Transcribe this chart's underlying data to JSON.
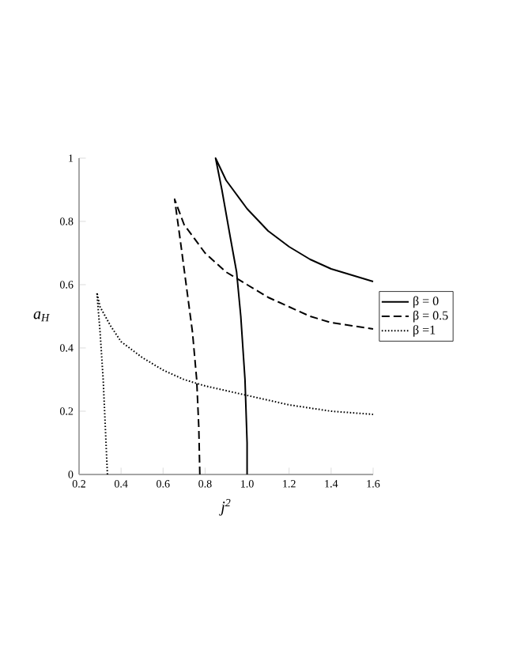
{
  "chart_data": {
    "type": "line",
    "xlabel": "j$^{2}$",
    "ylabel": "a$_{H}$",
    "xlim": [
      0.2,
      1.6
    ],
    "ylim": [
      0,
      1
    ],
    "xticks": [
      0.2,
      0.4,
      0.6,
      0.8,
      {
        "value": 1.0,
        "label": "1.0"
      },
      1.2,
      1.4,
      1.6
    ],
    "yticks": [
      0,
      0.2,
      0.4,
      0.6,
      0.8,
      1
    ],
    "legend": "right",
    "grid": false,
    "marker": "none",
    "series": [
      {
        "name": "β = 0",
        "color": "#000000",
        "line_style": "solid",
        "x": [
          1.0,
          1.0,
          0.99,
          0.97,
          0.95,
          0.92,
          0.88,
          0.85,
          0.9,
          1.0,
          1.1,
          1.2,
          1.3,
          1.4,
          1.5,
          1.6
        ],
        "values": [
          0,
          0.1,
          0.3,
          0.5,
          0.64,
          0.75,
          0.9,
          1.0,
          0.93,
          0.84,
          0.77,
          0.72,
          0.68,
          0.65,
          0.63,
          0.61
        ]
      },
      {
        "name": "β = 0.5",
        "color": "#000000",
        "line_style": "dashed",
        "x": [
          0.775,
          0.77,
          0.76,
          0.74,
          0.71,
          0.68,
          0.655,
          0.7,
          0.8,
          0.9,
          1.0,
          1.1,
          1.2,
          1.3,
          1.4,
          1.5,
          1.6
        ],
        "values": [
          0,
          0.15,
          0.3,
          0.45,
          0.6,
          0.75,
          0.87,
          0.79,
          0.7,
          0.64,
          0.6,
          0.56,
          0.53,
          0.5,
          0.48,
          0.47,
          0.46
        ]
      },
      {
        "name": "β =1",
        "color": "#000000",
        "line_style": "dotted",
        "x": [
          0.335,
          0.325,
          0.315,
          0.3,
          0.285,
          0.3,
          0.35,
          0.4,
          0.5,
          0.6,
          0.7,
          0.8,
          1.0,
          1.2,
          1.4,
          1.6
        ],
        "values": [
          0,
          0.15,
          0.3,
          0.45,
          0.575,
          0.53,
          0.47,
          0.42,
          0.37,
          0.33,
          0.3,
          0.28,
          0.25,
          0.22,
          0.2,
          0.19
        ]
      }
    ]
  }
}
